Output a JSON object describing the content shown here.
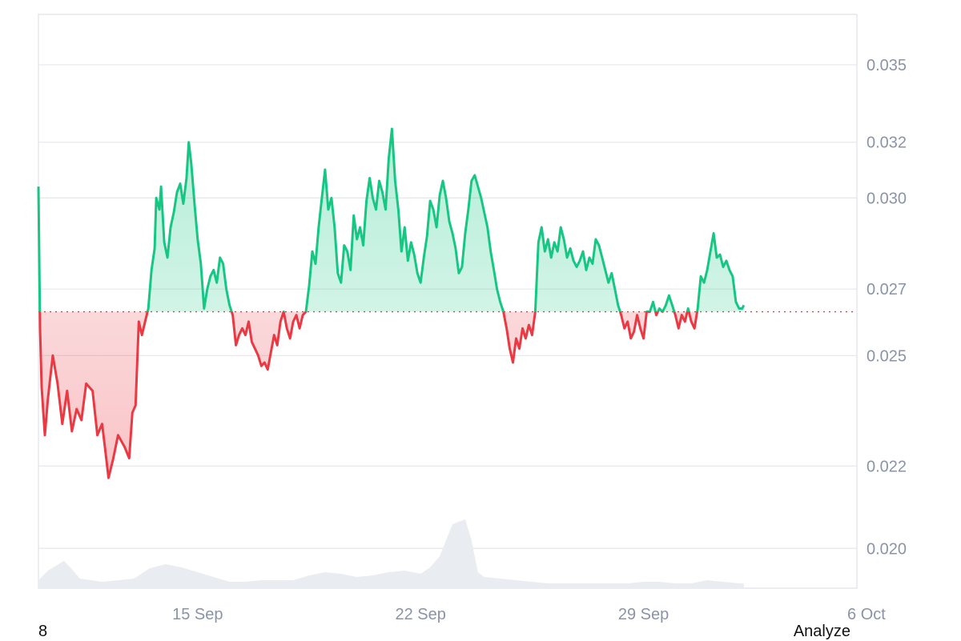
{
  "footer": {
    "left_text": "8",
    "right_text": "Analyze"
  },
  "colors": {
    "up": "#16c784",
    "down": "#ea3943",
    "grid": "#e5e7eb",
    "volume": "#e9edf2",
    "baseline": "#ea3943"
  },
  "chart_data": {
    "type": "line",
    "title": "",
    "xlabel": "",
    "ylabel": "",
    "y_scale": "log",
    "ylim": [
      0.0191,
      0.0371
    ],
    "yticks": [
      "0.035",
      "0.032",
      "0.030",
      "0.027",
      "0.025",
      "0.022",
      "0.020"
    ],
    "xticks": [
      {
        "label": "15 Sep",
        "day": 15
      },
      {
        "label": "22 Sep",
        "day": 22
      },
      {
        "label": "29 Sep",
        "day": 29
      },
      {
        "label": "6 Oct",
        "day": 36
      }
    ],
    "xlim_day": [
      10.0,
      35.7
    ],
    "baseline": 0.0263,
    "grid": true,
    "series": [
      {
        "points": [
          [
            10.0,
            0.0304
          ],
          [
            10.05,
            0.0258
          ],
          [
            10.1,
            0.0241
          ],
          [
            10.2,
            0.0228
          ],
          [
            10.3,
            0.0238
          ],
          [
            10.45,
            0.025
          ],
          [
            10.6,
            0.0242
          ],
          [
            10.75,
            0.0231
          ],
          [
            10.9,
            0.024
          ],
          [
            11.05,
            0.0229
          ],
          [
            11.2,
            0.0235
          ],
          [
            11.35,
            0.0232
          ],
          [
            11.5,
            0.0242
          ],
          [
            11.7,
            0.024
          ],
          [
            11.85,
            0.0228
          ],
          [
            12.0,
            0.0231
          ],
          [
            12.1,
            0.0224
          ],
          [
            12.2,
            0.0217
          ],
          [
            12.35,
            0.0222
          ],
          [
            12.5,
            0.0228
          ],
          [
            12.7,
            0.0225
          ],
          [
            12.85,
            0.0222
          ],
          [
            12.95,
            0.0234
          ],
          [
            13.05,
            0.0236
          ],
          [
            13.15,
            0.026
          ],
          [
            13.25,
            0.0256
          ],
          [
            13.35,
            0.026
          ],
          [
            13.45,
            0.0264
          ],
          [
            13.55,
            0.0276
          ],
          [
            13.65,
            0.0283
          ],
          [
            13.7,
            0.03
          ],
          [
            13.8,
            0.0296
          ],
          [
            13.85,
            0.0304
          ],
          [
            13.95,
            0.0285
          ],
          [
            14.05,
            0.028
          ],
          [
            14.15,
            0.029
          ],
          [
            14.25,
            0.0295
          ],
          [
            14.35,
            0.0302
          ],
          [
            14.45,
            0.0305
          ],
          [
            14.55,
            0.0298
          ],
          [
            14.65,
            0.0307
          ],
          [
            14.72,
            0.032
          ],
          [
            14.8,
            0.0312
          ],
          [
            14.9,
            0.0298
          ],
          [
            15.0,
            0.0286
          ],
          [
            15.1,
            0.0278
          ],
          [
            15.2,
            0.0264
          ],
          [
            15.3,
            0.027
          ],
          [
            15.4,
            0.0274
          ],
          [
            15.5,
            0.0276
          ],
          [
            15.6,
            0.0272
          ],
          [
            15.7,
            0.028
          ],
          [
            15.8,
            0.0278
          ],
          [
            15.9,
            0.027
          ],
          [
            16.0,
            0.0265
          ],
          [
            16.1,
            0.0262
          ],
          [
            16.2,
            0.0253
          ],
          [
            16.3,
            0.0256
          ],
          [
            16.4,
            0.0258
          ],
          [
            16.5,
            0.0256
          ],
          [
            16.6,
            0.026
          ],
          [
            16.7,
            0.0254
          ],
          [
            16.8,
            0.0252
          ],
          [
            16.9,
            0.025
          ],
          [
            17.0,
            0.0247
          ],
          [
            17.1,
            0.0248
          ],
          [
            17.2,
            0.0246
          ],
          [
            17.3,
            0.0251
          ],
          [
            17.4,
            0.0256
          ],
          [
            17.5,
            0.0253
          ],
          [
            17.6,
            0.026
          ],
          [
            17.7,
            0.0263
          ],
          [
            17.8,
            0.0258
          ],
          [
            17.9,
            0.0255
          ],
          [
            18.0,
            0.026
          ],
          [
            18.1,
            0.0262
          ],
          [
            18.2,
            0.0258
          ],
          [
            18.3,
            0.0262
          ],
          [
            18.4,
            0.0263
          ],
          [
            18.5,
            0.0271
          ],
          [
            18.6,
            0.0282
          ],
          [
            18.7,
            0.0278
          ],
          [
            18.8,
            0.029
          ],
          [
            18.9,
            0.03
          ],
          [
            19.0,
            0.031
          ],
          [
            19.1,
            0.0296
          ],
          [
            19.2,
            0.03
          ],
          [
            19.3,
            0.029
          ],
          [
            19.4,
            0.0275
          ],
          [
            19.5,
            0.0272
          ],
          [
            19.6,
            0.0284
          ],
          [
            19.7,
            0.0282
          ],
          [
            19.8,
            0.0276
          ],
          [
            19.9,
            0.0294
          ],
          [
            20.0,
            0.0286
          ],
          [
            20.1,
            0.029
          ],
          [
            20.2,
            0.0284
          ],
          [
            20.3,
            0.0299
          ],
          [
            20.4,
            0.0307
          ],
          [
            20.5,
            0.03
          ],
          [
            20.6,
            0.0296
          ],
          [
            20.7,
            0.0306
          ],
          [
            20.8,
            0.0302
          ],
          [
            20.9,
            0.0296
          ],
          [
            21.0,
            0.0314
          ],
          [
            21.1,
            0.0325
          ],
          [
            21.2,
            0.0306
          ],
          [
            21.3,
            0.0296
          ],
          [
            21.4,
            0.0282
          ],
          [
            21.5,
            0.029
          ],
          [
            21.6,
            0.0279
          ],
          [
            21.7,
            0.0285
          ],
          [
            21.8,
            0.0281
          ],
          [
            21.9,
            0.0275
          ],
          [
            22.0,
            0.0272
          ],
          [
            22.1,
            0.028
          ],
          [
            22.2,
            0.0287
          ],
          [
            22.3,
            0.0299
          ],
          [
            22.4,
            0.0296
          ],
          [
            22.5,
            0.029
          ],
          [
            22.6,
            0.0301
          ],
          [
            22.7,
            0.0306
          ],
          [
            22.8,
            0.03
          ],
          [
            22.9,
            0.0292
          ],
          [
            23.0,
            0.0288
          ],
          [
            23.1,
            0.0283
          ],
          [
            23.2,
            0.0275
          ],
          [
            23.3,
            0.0277
          ],
          [
            23.4,
            0.0288
          ],
          [
            23.5,
            0.0296
          ],
          [
            23.6,
            0.0306
          ],
          [
            23.7,
            0.0308
          ],
          [
            23.8,
            0.0304
          ],
          [
            23.9,
            0.03
          ],
          [
            24.0,
            0.0295
          ],
          [
            24.1,
            0.029
          ],
          [
            24.2,
            0.0282
          ],
          [
            24.3,
            0.0276
          ],
          [
            24.4,
            0.027
          ],
          [
            24.5,
            0.0266
          ],
          [
            24.6,
            0.0263
          ],
          [
            24.7,
            0.0258
          ],
          [
            24.8,
            0.0252
          ],
          [
            24.9,
            0.0248
          ],
          [
            25.0,
            0.0255
          ],
          [
            25.1,
            0.0252
          ],
          [
            25.2,
            0.0258
          ],
          [
            25.3,
            0.0255
          ],
          [
            25.4,
            0.0259
          ],
          [
            25.5,
            0.0256
          ],
          [
            25.6,
            0.0263
          ],
          [
            25.7,
            0.0285
          ],
          [
            25.8,
            0.029
          ],
          [
            25.9,
            0.0282
          ],
          [
            26.0,
            0.0286
          ],
          [
            26.1,
            0.028
          ],
          [
            26.2,
            0.0285
          ],
          [
            26.3,
            0.0282
          ],
          [
            26.4,
            0.029
          ],
          [
            26.5,
            0.0286
          ],
          [
            26.6,
            0.028
          ],
          [
            26.7,
            0.0283
          ],
          [
            26.8,
            0.0279
          ],
          [
            26.9,
            0.0277
          ],
          [
            27.0,
            0.0279
          ],
          [
            27.1,
            0.0282
          ],
          [
            27.2,
            0.0276
          ],
          [
            27.3,
            0.028
          ],
          [
            27.4,
            0.0278
          ],
          [
            27.5,
            0.0286
          ],
          [
            27.6,
            0.0284
          ],
          [
            27.7,
            0.028
          ],
          [
            27.8,
            0.0276
          ],
          [
            27.9,
            0.0272
          ],
          [
            28.0,
            0.0275
          ],
          [
            28.1,
            0.027
          ],
          [
            28.2,
            0.0265
          ],
          [
            28.3,
            0.0262
          ],
          [
            28.4,
            0.0258
          ],
          [
            28.5,
            0.026
          ],
          [
            28.6,
            0.0255
          ],
          [
            28.7,
            0.0257
          ],
          [
            28.8,
            0.0262
          ],
          [
            28.9,
            0.0258
          ],
          [
            29.0,
            0.0255
          ],
          [
            29.1,
            0.0263
          ],
          [
            29.2,
            0.0263
          ],
          [
            29.3,
            0.0266
          ],
          [
            29.4,
            0.0262
          ],
          [
            29.5,
            0.0264
          ],
          [
            29.6,
            0.0263
          ],
          [
            29.7,
            0.0265
          ],
          [
            29.8,
            0.0268
          ],
          [
            29.9,
            0.0265
          ],
          [
            30.0,
            0.0262
          ],
          [
            30.1,
            0.0258
          ],
          [
            30.2,
            0.0262
          ],
          [
            30.3,
            0.026
          ],
          [
            30.4,
            0.0264
          ],
          [
            30.5,
            0.026
          ],
          [
            30.6,
            0.0258
          ],
          [
            30.7,
            0.0264
          ],
          [
            30.8,
            0.0274
          ],
          [
            30.9,
            0.0272
          ],
          [
            31.0,
            0.0276
          ],
          [
            31.1,
            0.0282
          ],
          [
            31.2,
            0.0288
          ],
          [
            31.3,
            0.028
          ],
          [
            31.4,
            0.0281
          ],
          [
            31.5,
            0.0277
          ],
          [
            31.6,
            0.0279
          ],
          [
            31.7,
            0.0276
          ],
          [
            31.8,
            0.0274
          ],
          [
            31.9,
            0.0266
          ],
          [
            32.0,
            0.0264
          ],
          [
            32.1,
            0.0264
          ],
          [
            32.15,
            0.0265
          ]
        ]
      }
    ],
    "volume": [
      [
        10.0,
        0.1
      ],
      [
        10.3,
        0.22
      ],
      [
        10.8,
        0.34
      ],
      [
        11.0,
        0.26
      ],
      [
        11.3,
        0.12
      ],
      [
        12.0,
        0.08
      ],
      [
        13.0,
        0.12
      ],
      [
        13.5,
        0.25
      ],
      [
        14.0,
        0.3
      ],
      [
        14.5,
        0.26
      ],
      [
        15.0,
        0.2
      ],
      [
        15.5,
        0.14
      ],
      [
        16.0,
        0.08
      ],
      [
        16.5,
        0.08
      ],
      [
        17.0,
        0.1
      ],
      [
        17.5,
        0.1
      ],
      [
        18.0,
        0.1
      ],
      [
        18.5,
        0.16
      ],
      [
        19.0,
        0.2
      ],
      [
        19.5,
        0.18
      ],
      [
        20.0,
        0.14
      ],
      [
        20.5,
        0.16
      ],
      [
        21.0,
        0.2
      ],
      [
        21.5,
        0.22
      ],
      [
        22.0,
        0.18
      ],
      [
        22.3,
        0.26
      ],
      [
        22.6,
        0.4
      ],
      [
        23.0,
        0.8
      ],
      [
        23.4,
        0.86
      ],
      [
        23.6,
        0.6
      ],
      [
        23.8,
        0.2
      ],
      [
        24.0,
        0.14
      ],
      [
        24.5,
        0.12
      ],
      [
        25.0,
        0.1
      ],
      [
        25.5,
        0.08
      ],
      [
        26.0,
        0.06
      ],
      [
        27.0,
        0.06
      ],
      [
        28.0,
        0.06
      ],
      [
        28.5,
        0.06
      ],
      [
        29.0,
        0.08
      ],
      [
        29.5,
        0.08
      ],
      [
        30.0,
        0.06
      ],
      [
        30.5,
        0.06
      ],
      [
        31.0,
        0.1
      ],
      [
        31.5,
        0.08
      ],
      [
        32.0,
        0.06
      ],
      [
        32.15,
        0.06
      ]
    ]
  }
}
